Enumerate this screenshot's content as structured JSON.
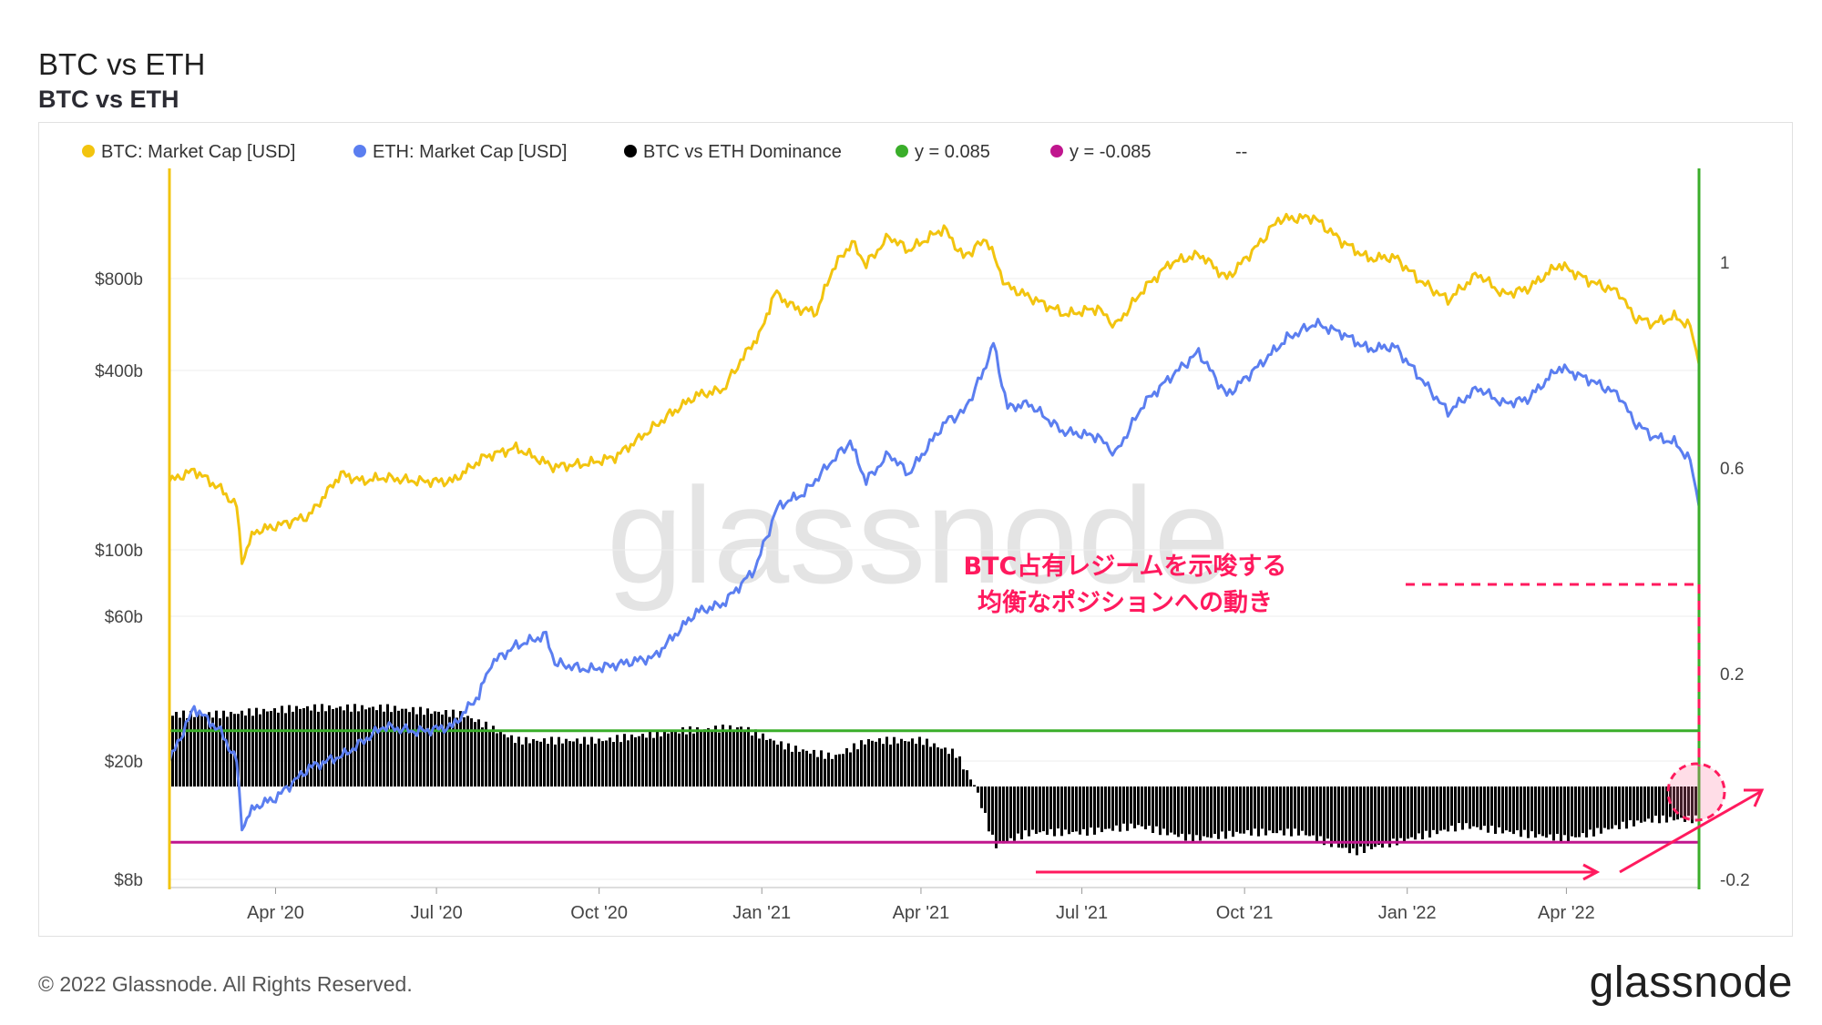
{
  "header": {
    "title": "BTC vs ETH",
    "subtitle": "BTC vs ETH"
  },
  "footer": {
    "copyright": "© 2022 Glassnode. All Rights Reserved.",
    "logo": "glassnode"
  },
  "watermark": "glassnode",
  "annotation": {
    "line1": "BTC占有レジームを示唆する",
    "line2": "均衡なポジションへの動き"
  },
  "colors": {
    "btc": "#f2c40f",
    "eth": "#5b7ef0",
    "dominance": "#000000",
    "upper": "#3aae2a",
    "lower": "#c0168e",
    "annotation": "#ff1a5e",
    "grid": "#eeeeee"
  },
  "chart_data": {
    "type": "line",
    "legend": [
      {
        "label": "BTC: Market Cap [USD]",
        "color": "#f2c40f"
      },
      {
        "label": "ETH: Market Cap [USD]",
        "color": "#5b7ef0"
      },
      {
        "label": "BTC vs ETH Dominance",
        "color": "#000000"
      },
      {
        "label": "y = 0.085",
        "color": "#3aae2a"
      },
      {
        "label": "y = -0.085",
        "color": "#c0168e"
      },
      {
        "label": "--",
        "color": null
      }
    ],
    "x_ticks": [
      "Apr '20",
      "Jul '20",
      "Oct '20",
      "Jan '21",
      "Apr '21",
      "Jul '21",
      "Oct '21",
      "Jan '22",
      "Apr '22"
    ],
    "x_range": [
      "2020-02-01",
      "2022-06-15"
    ],
    "y_left_ticks": [
      "$800b",
      "$400b",
      "$100b",
      "$60b",
      "$20b",
      "$8b"
    ],
    "y_left_scale": "log",
    "y_right_ticks": [
      "1",
      "0.6",
      "0.2",
      "-0.2"
    ],
    "y_right_range": [
      -0.2,
      1.2
    ],
    "series": [
      {
        "name": "BTC: Market Cap [USD]",
        "unit": "USD billions",
        "points": [
          [
            "2020-02-01",
            170
          ],
          [
            "2020-02-15",
            185
          ],
          [
            "2020-03-01",
            160
          ],
          [
            "2020-03-10",
            140
          ],
          [
            "2020-03-13",
            92
          ],
          [
            "2020-03-20",
            115
          ],
          [
            "2020-04-01",
            120
          ],
          [
            "2020-04-20",
            130
          ],
          [
            "2020-05-08",
            180
          ],
          [
            "2020-05-20",
            170
          ],
          [
            "2020-06-01",
            175
          ],
          [
            "2020-06-20",
            170
          ],
          [
            "2020-07-10",
            170
          ],
          [
            "2020-07-28",
            205
          ],
          [
            "2020-08-15",
            220
          ],
          [
            "2020-09-05",
            190
          ],
          [
            "2020-09-25",
            195
          ],
          [
            "2020-10-10",
            205
          ],
          [
            "2020-10-25",
            240
          ],
          [
            "2020-11-10",
            285
          ],
          [
            "2020-11-25",
            330
          ],
          [
            "2020-12-10",
            345
          ],
          [
            "2020-12-20",
            430
          ],
          [
            "2021-01-01",
            540
          ],
          [
            "2021-01-08",
            720
          ],
          [
            "2021-01-20",
            640
          ],
          [
            "2021-02-01",
            620
          ],
          [
            "2021-02-10",
            860
          ],
          [
            "2021-02-21",
            1050
          ],
          [
            "2021-03-01",
            890
          ],
          [
            "2021-03-14",
            1100
          ],
          [
            "2021-03-25",
            990
          ],
          [
            "2021-04-14",
            1170
          ],
          [
            "2021-04-25",
            940
          ],
          [
            "2021-05-08",
            1080
          ],
          [
            "2021-05-19",
            760
          ],
          [
            "2021-06-05",
            680
          ],
          [
            "2021-06-22",
            610
          ],
          [
            "2021-07-10",
            640
          ],
          [
            "2021-07-20",
            560
          ],
          [
            "2021-08-05",
            740
          ],
          [
            "2021-08-20",
            900
          ],
          [
            "2021-09-06",
            960
          ],
          [
            "2021-09-21",
            800
          ],
          [
            "2021-10-10",
            1050
          ],
          [
            "2021-10-20",
            1250
          ],
          [
            "2021-11-09",
            1270
          ],
          [
            "2021-11-25",
            1060
          ],
          [
            "2021-12-10",
            930
          ],
          [
            "2021-12-25",
            940
          ],
          [
            "2022-01-08",
            790
          ],
          [
            "2022-01-24",
            680
          ],
          [
            "2022-02-10",
            830
          ],
          [
            "2022-02-24",
            710
          ],
          [
            "2022-03-10",
            740
          ],
          [
            "2022-03-28",
            890
          ],
          [
            "2022-04-15",
            780
          ],
          [
            "2022-05-01",
            720
          ],
          [
            "2022-05-09",
            600
          ],
          [
            "2022-05-20",
            570
          ],
          [
            "2022-06-01",
            600
          ],
          [
            "2022-06-10",
            560
          ],
          [
            "2022-06-15",
            420
          ]
        ]
      },
      {
        "name": "ETH: Market Cap [USD]",
        "unit": "USD billions",
        "points": [
          [
            "2020-02-01",
            20
          ],
          [
            "2020-02-15",
            30
          ],
          [
            "2020-03-01",
            25
          ],
          [
            "2020-03-10",
            20
          ],
          [
            "2020-03-13",
            12
          ],
          [
            "2020-03-20",
            14
          ],
          [
            "2020-04-01",
            15
          ],
          [
            "2020-04-20",
            19
          ],
          [
            "2020-05-10",
            21
          ],
          [
            "2020-06-01",
            26
          ],
          [
            "2020-06-20",
            25
          ],
          [
            "2020-07-10",
            26
          ],
          [
            "2020-07-25",
            33
          ],
          [
            "2020-08-01",
            42
          ],
          [
            "2020-08-15",
            48
          ],
          [
            "2020-09-01",
            52
          ],
          [
            "2020-09-06",
            42
          ],
          [
            "2020-09-25",
            40
          ],
          [
            "2020-10-15",
            42
          ],
          [
            "2020-11-01",
            44
          ],
          [
            "2020-11-25",
            62
          ],
          [
            "2020-12-10",
            66
          ],
          [
            "2020-12-28",
            86
          ],
          [
            "2021-01-10",
            140
          ],
          [
            "2021-01-25",
            155
          ],
          [
            "2021-02-10",
            200
          ],
          [
            "2021-02-20",
            230
          ],
          [
            "2021-03-01",
            170
          ],
          [
            "2021-03-14",
            210
          ],
          [
            "2021-03-25",
            180
          ],
          [
            "2021-04-15",
            270
          ],
          [
            "2021-04-25",
            290
          ],
          [
            "2021-05-05",
            380
          ],
          [
            "2021-05-12",
            490
          ],
          [
            "2021-05-20",
            300
          ],
          [
            "2021-06-01",
            310
          ],
          [
            "2021-06-20",
            250
          ],
          [
            "2021-07-10",
            240
          ],
          [
            "2021-07-20",
            210
          ],
          [
            "2021-08-05",
            310
          ],
          [
            "2021-08-20",
            380
          ],
          [
            "2021-09-05",
            460
          ],
          [
            "2021-09-21",
            330
          ],
          [
            "2021-10-10",
            420
          ],
          [
            "2021-10-25",
            510
          ],
          [
            "2021-11-10",
            570
          ],
          [
            "2021-11-25",
            530
          ],
          [
            "2021-12-10",
            470
          ],
          [
            "2021-12-25",
            480
          ],
          [
            "2022-01-08",
            380
          ],
          [
            "2022-01-24",
            290
          ],
          [
            "2022-02-10",
            350
          ],
          [
            "2022-02-24",
            310
          ],
          [
            "2022-03-10",
            320
          ],
          [
            "2022-03-28",
            410
          ],
          [
            "2022-04-15",
            370
          ],
          [
            "2022-05-01",
            330
          ],
          [
            "2022-05-09",
            270
          ],
          [
            "2022-05-20",
            240
          ],
          [
            "2022-06-01",
            230
          ],
          [
            "2022-06-10",
            200
          ],
          [
            "2022-06-15",
            140
          ]
        ]
      },
      {
        "name": "BTC vs ETH Dominance",
        "axis": "right",
        "points": [
          [
            "2020-02-01",
            0.11
          ],
          [
            "2020-03-01",
            0.11
          ],
          [
            "2020-04-15",
            0.12
          ],
          [
            "2020-06-01",
            0.12
          ],
          [
            "2020-07-15",
            0.11
          ],
          [
            "2020-08-15",
            0.07
          ],
          [
            "2020-10-01",
            0.07
          ],
          [
            "2020-11-15",
            0.085
          ],
          [
            "2020-12-20",
            0.09
          ],
          [
            "2021-01-15",
            0.06
          ],
          [
            "2021-02-10",
            0.045
          ],
          [
            "2021-03-01",
            0.07
          ],
          [
            "2021-04-01",
            0.07
          ],
          [
            "2021-04-20",
            0.05
          ],
          [
            "2021-05-01",
            0.0
          ],
          [
            "2021-05-12",
            -0.09
          ],
          [
            "2021-06-01",
            -0.07
          ],
          [
            "2021-07-01",
            -0.07
          ],
          [
            "2021-08-01",
            -0.06
          ],
          [
            "2021-09-01",
            -0.08
          ],
          [
            "2021-10-01",
            -0.07
          ],
          [
            "2021-11-01",
            -0.07
          ],
          [
            "2021-12-01",
            -0.1
          ],
          [
            "2022-01-01",
            -0.08
          ],
          [
            "2022-02-01",
            -0.06
          ],
          [
            "2022-03-01",
            -0.07
          ],
          [
            "2022-04-01",
            -0.08
          ],
          [
            "2022-05-01",
            -0.06
          ],
          [
            "2022-05-20",
            -0.05
          ],
          [
            "2022-06-15",
            -0.05
          ]
        ]
      },
      {
        "name": "y = 0.085",
        "axis": "right",
        "value": 0.085
      },
      {
        "name": "y = -0.085",
        "axis": "right",
        "value": -0.085
      }
    ],
    "grid": true,
    "legend_position": "top-left"
  }
}
